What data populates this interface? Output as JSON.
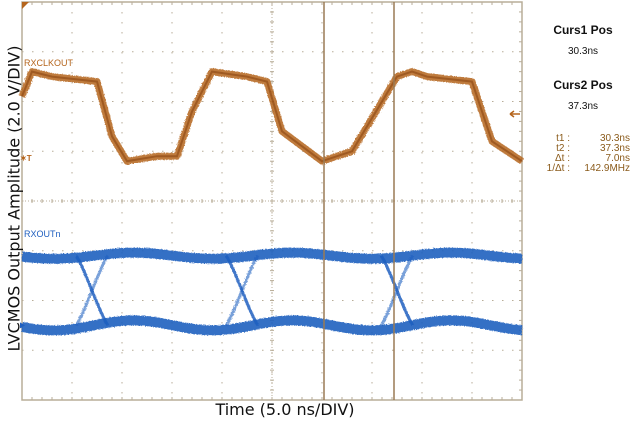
{
  "chart_data": {
    "type": "line",
    "title": "",
    "xlabel": "Time (5.0 ns/DIV)",
    "ylabel": "LVCMOS Output Amplitude (2.0 V/DIV)",
    "grid": true,
    "x_divisions": 10,
    "y_divisions": 8,
    "x_scale": "5.0 ns/DIV",
    "y_scale": "2.0 V/DIV",
    "series": [
      {
        "name": "RXCLKOUT",
        "color": "#b5651d",
        "description": "Clock square wave, ~2.5 cycles across screen, high level ~div 1.5 from top, low level ~div 3.1 from top",
        "x_div": [
          0,
          0.2,
          0.6,
          1.5,
          1.8,
          2.1,
          2.7,
          3.1,
          3.4,
          3.8,
          4.5,
          4.9,
          5.2,
          6.0,
          6.3,
          6.6,
          7.5,
          7.8,
          8.1,
          9.0,
          9.4,
          10.0
        ],
        "y_div_from_top": [
          1.9,
          1.4,
          1.5,
          1.6,
          2.7,
          3.2,
          3.1,
          3.1,
          2.2,
          1.4,
          1.5,
          1.6,
          2.6,
          3.2,
          3.1,
          3.0,
          1.5,
          1.4,
          1.5,
          1.6,
          2.8,
          3.2
        ]
      },
      {
        "name": "RXOUTn",
        "color": "#1f5fbf",
        "description": "Eye diagram data output, high level ~div 5.1, low level ~div 6.5, crossings near div 1.4, 4.4, 7.5",
        "crossings_x_div": [
          1.4,
          4.4,
          7.5
        ],
        "high_level_div_from_top": 5.1,
        "low_level_div_from_top": 6.5
      }
    ],
    "cursors": [
      {
        "name": "Curs1",
        "position": "30.3ns",
        "x_div": 6.04
      },
      {
        "name": "Curs2",
        "position": "37.3ns",
        "x_div": 7.44
      }
    ],
    "measurements": {
      "t1": "30.3ns",
      "t2": "37.3ns",
      "delta_t": "7.0ns",
      "inv_delta_t": "142.9MHz"
    }
  },
  "labels": {
    "ch1": "RXCLKOUT",
    "ch2": "RXOUTn",
    "xlabel": "Time (5.0 ns/DIV)",
    "ylabel": "LVCMOS Output Amplitude (2.0 V/DIV)",
    "trigger_marker": "T"
  },
  "readout": {
    "curs1_title": "Curs1 Pos",
    "curs1_value": "30.3ns",
    "curs2_title": "Curs2 Pos",
    "curs2_value": "37.3ns",
    "rows": [
      {
        "key": "t1 :",
        "value": "30.3ns"
      },
      {
        "key": "t2 :",
        "value": "37.3ns"
      },
      {
        "key": "Δt :",
        "value": "7.0ns"
      },
      {
        "key": "1/Δt :",
        "value": "142.9MHz"
      }
    ]
  },
  "colors": {
    "clock": "#b5651d",
    "data": "#1f5fbf",
    "grid": "#b8ad98",
    "cursor": "#9a7a55"
  }
}
